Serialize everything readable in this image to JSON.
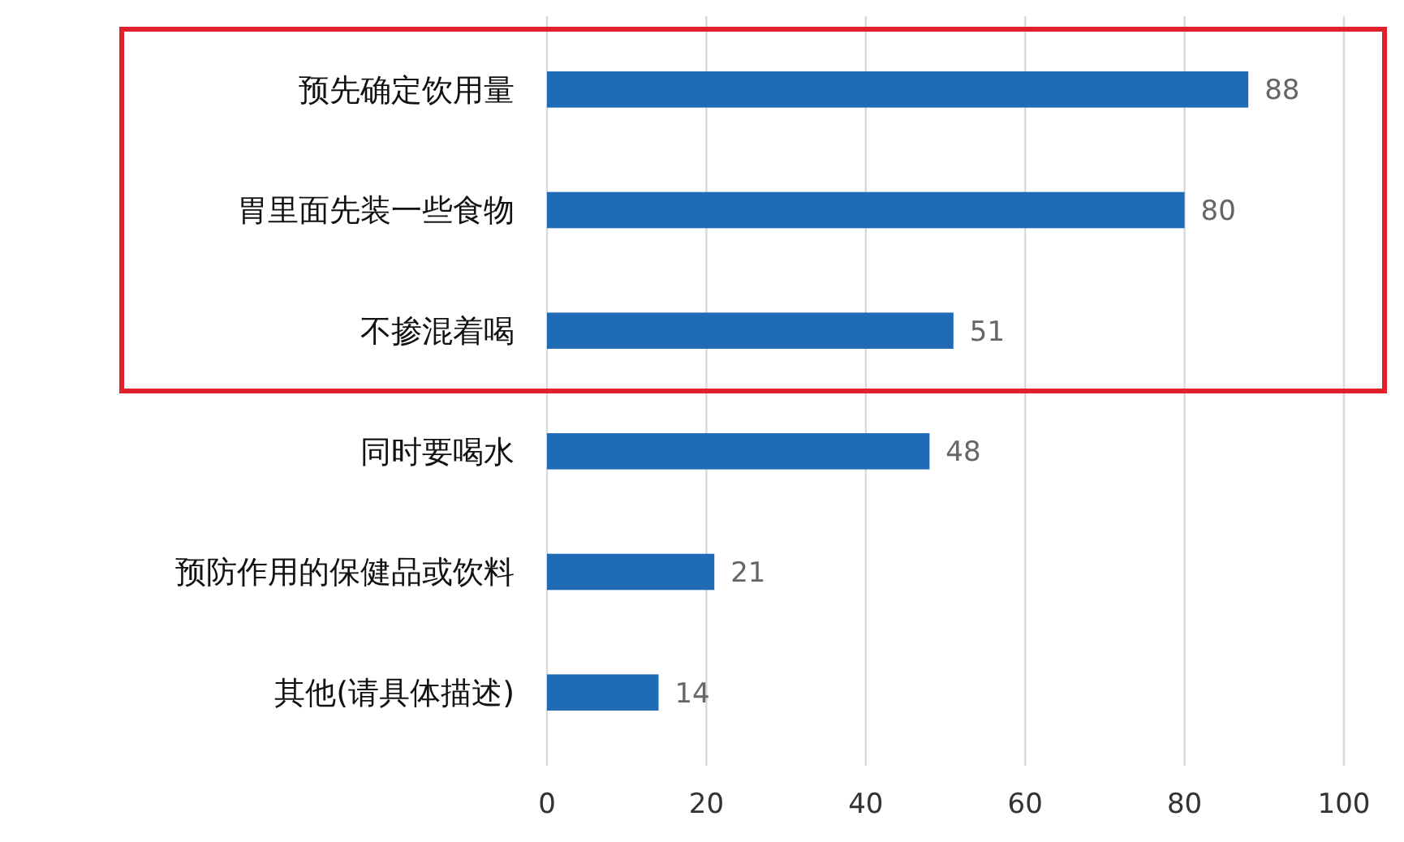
{
  "chart_data": {
    "type": "bar",
    "orientation": "horizontal",
    "categories": [
      "预先确定饮用量",
      "胃里面先装一些食物",
      "不掺混着喝",
      "同时要喝水",
      "预防作用的保健品或饮料",
      "其他(请具体描述)"
    ],
    "values": [
      88,
      80,
      51,
      48,
      21,
      14
    ],
    "color": "#1f6bb5",
    "xlim": [
      0,
      100
    ],
    "xticks": [
      0,
      20,
      40,
      60,
      80,
      100
    ],
    "grid": "x",
    "data_labels": true
  }
}
